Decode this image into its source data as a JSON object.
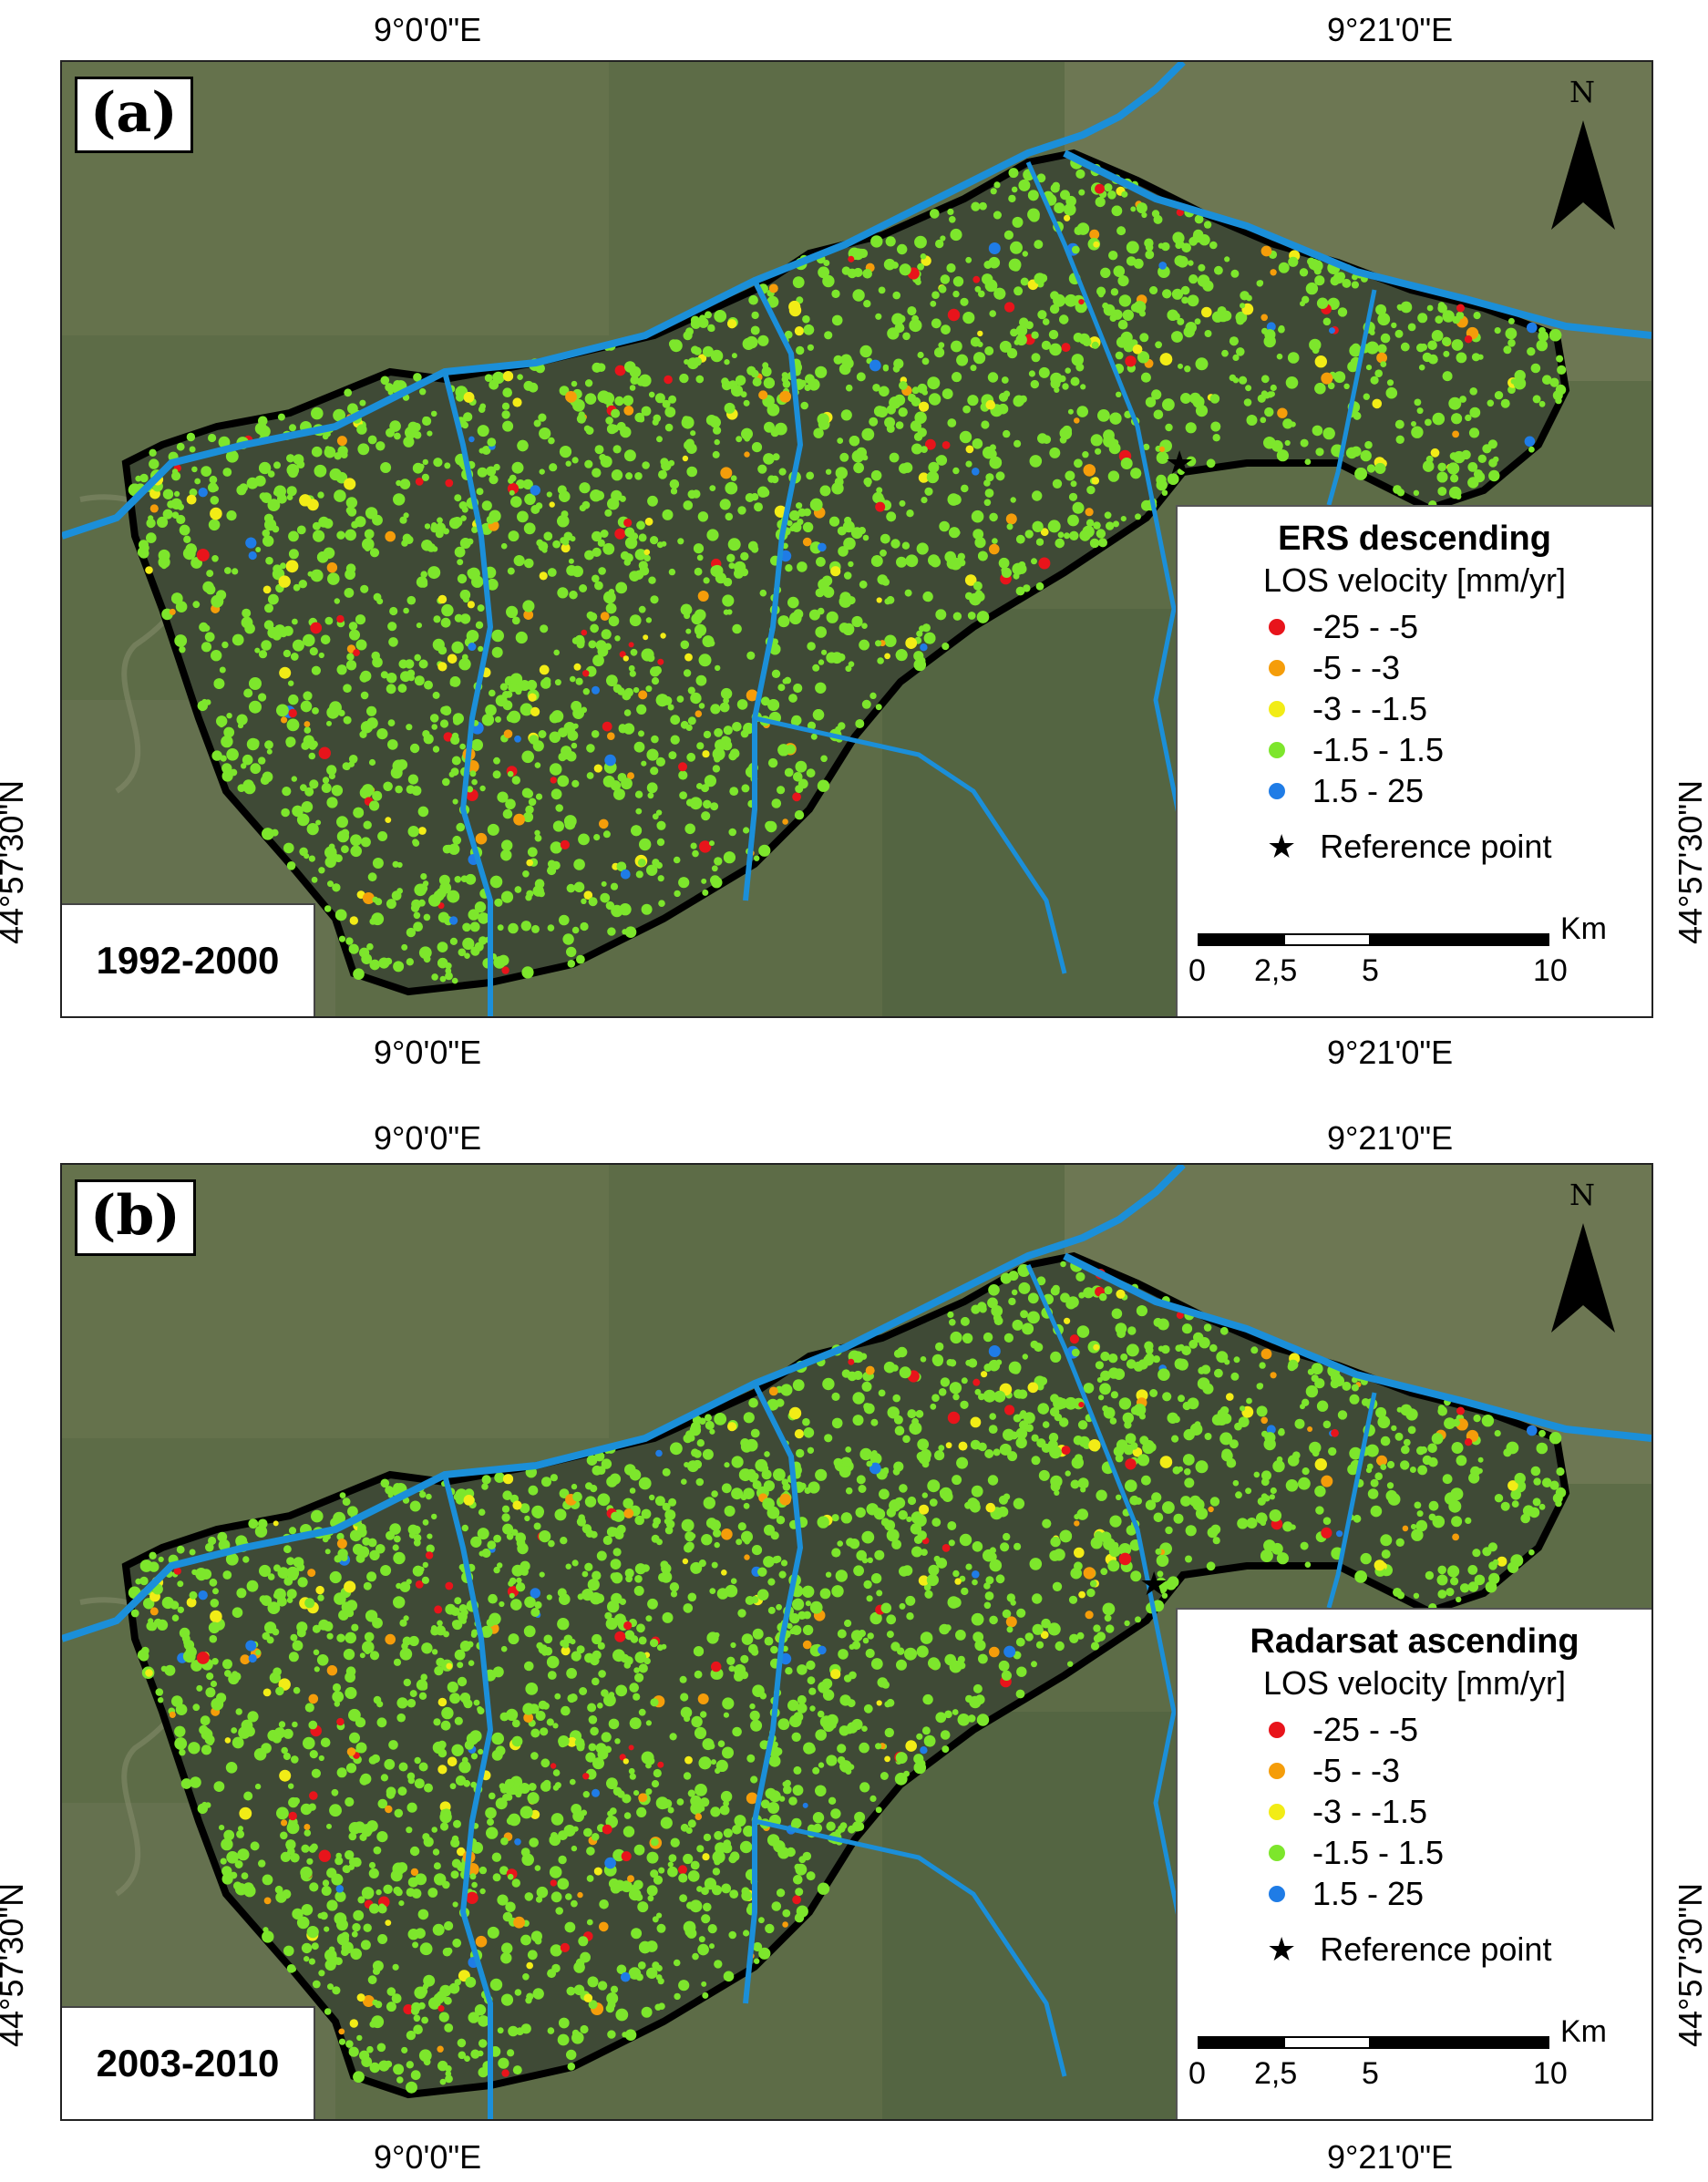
{
  "panels": [
    {
      "label": "(a)",
      "period": "1992-2000",
      "legend": {
        "title": "ERS descending",
        "subtitle": "LOS velocity [mm/yr]",
        "classes": [
          {
            "label": "-25 - -5",
            "color": "#e8141b"
          },
          {
            "label": "-5 - -3",
            "color": "#f59d0a"
          },
          {
            "label": "-3 - -1.5",
            "color": "#f2ec16"
          },
          {
            "label": "-1.5 - 1.5",
            "color": "#7de62c"
          },
          {
            "label": "1.5 - 25",
            "color": "#1f7ce6"
          }
        ],
        "reference": "Reference point",
        "scale": {
          "unit": "Km",
          "ticks": [
            "0",
            "2,5",
            "5",
            "10"
          ]
        }
      },
      "coords": {
        "top_left": "9°0'0\"E",
        "top_right": "9°21'0\"E",
        "bottom_left": "9°0'0\"E",
        "bottom_right": "9°21'0\"E",
        "left": "44°57'30\"N",
        "right": "44°57'30\"N"
      }
    },
    {
      "label": "(b)",
      "period": "2003-2010",
      "legend": {
        "title": "Radarsat ascending",
        "subtitle": "LOS velocity [mm/yr]",
        "classes": [
          {
            "label": "-25 - -5",
            "color": "#e8141b"
          },
          {
            "label": "-5 - -3",
            "color": "#f59d0a"
          },
          {
            "label": "-3 - -1.5",
            "color": "#f2ec16"
          },
          {
            "label": "-1.5 - 1.5",
            "color": "#7de62c"
          },
          {
            "label": "1.5 - 25",
            "color": "#1f7ce6"
          }
        ],
        "reference": "Reference point",
        "scale": {
          "unit": "Km",
          "ticks": [
            "0",
            "2,5",
            "5",
            "10"
          ]
        }
      },
      "coords": {
        "top_left": "9°0'0\"E",
        "top_right": "9°21'0\"E",
        "bottom_left": "9°0'0\"E",
        "bottom_right": "9°21'0\"E",
        "left": "44°57'30\"N",
        "right": "44°57'30\"N"
      }
    }
  ],
  "north_label": "N",
  "colors": {
    "river": "#1b8fd9",
    "boundary": "#000000",
    "background": "#5f6e48"
  }
}
